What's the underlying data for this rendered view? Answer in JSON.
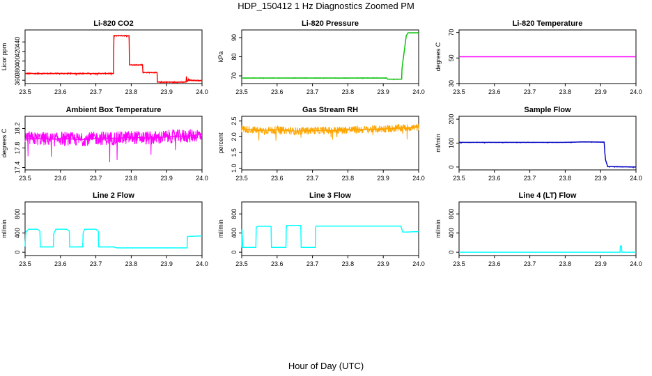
{
  "figure": {
    "title": "HDP_150412  1 Hz Diagnostics Zoomed PM",
    "xlabel": "Hour of Day (UTC)"
  },
  "chart_data": [
    {
      "type": "line",
      "title": "Li-820 CO2",
      "ylabel": "Licor ppm",
      "color": "#ff0000",
      "xlim": [
        23.5,
        24.0
      ],
      "xticks": [
        "23.5",
        "23.6",
        "23.7",
        "23.8",
        "23.9",
        "24.0"
      ],
      "ylim": [
        353,
        465
      ],
      "yticks": [
        "360",
        "380",
        "400",
        "420",
        "440"
      ],
      "noise": 1.2,
      "series": [
        {
          "x": [
            23.5,
            23.75,
            23.751,
            23.794,
            23.795,
            23.832,
            23.833,
            23.873,
            23.874,
            23.955,
            23.956,
            23.958,
            23.96,
            23.962,
            23.963,
            24.0
          ],
          "y": [
            374,
            374,
            453,
            453,
            392,
            392,
            376,
            376,
            356,
            356,
            368,
            358,
            358,
            362,
            360,
            359
          ]
        }
      ]
    },
    {
      "type": "line",
      "title": "Li-820 Pressure",
      "ylabel": "kPa",
      "color": "#00c000",
      "xlim": [
        23.5,
        24.0
      ],
      "xticks": [
        "23.5",
        "23.6",
        "23.7",
        "23.8",
        "23.9",
        "24.0"
      ],
      "ylim": [
        66,
        94
      ],
      "yticks": [
        "70",
        "80",
        "90"
      ],
      "noise": 0.12,
      "series": [
        {
          "x": [
            23.5,
            23.91,
            23.912,
            23.952,
            23.953,
            23.965,
            23.97,
            24.0
          ],
          "y": [
            68.9,
            68.9,
            68.3,
            68.3,
            74,
            91,
            92.5,
            92.5
          ]
        }
      ]
    },
    {
      "type": "line",
      "title": "Li-820 Temperature",
      "ylabel": "degrees C",
      "color": "#ff00ff",
      "xlim": [
        23.5,
        24.0
      ],
      "xticks": [
        "23.5",
        "23.6",
        "23.7",
        "23.8",
        "23.9",
        "24.0"
      ],
      "ylim": [
        30,
        72
      ],
      "yticks": [
        "30",
        "50",
        "70"
      ],
      "noise": 0,
      "series": [
        {
          "x": [
            23.5,
            24.0
          ],
          "y": [
            51,
            51
          ]
        }
      ]
    },
    {
      "type": "line",
      "title": "Ambient Box Temperature",
      "ylabel": "degrees C",
      "color": "#ff00ff",
      "xlim": [
        23.5,
        24.0
      ],
      "xticks": [
        "23.5",
        "23.6",
        "23.7",
        "23.8",
        "23.9",
        "24.0"
      ],
      "ylim": [
        17.35,
        18.45
      ],
      "yticks": [
        "17.4",
        "17.8",
        "18.2"
      ],
      "noise": 0.14,
      "series": [
        {
          "x": [
            23.5,
            23.59,
            23.6,
            23.66,
            23.7,
            23.76,
            23.8,
            23.86,
            23.9,
            23.97,
            24.0
          ],
          "y": [
            18.0,
            17.98,
            18.0,
            17.97,
            18.0,
            18.0,
            18.02,
            18.0,
            18.03,
            18.05,
            18.08
          ]
        }
      ]
    },
    {
      "type": "line",
      "title": "Gas Stream RH",
      "ylabel": "percent",
      "color": "#ffa500",
      "xlim": [
        23.5,
        24.0
      ],
      "xticks": [
        "23.5",
        "23.6",
        "23.7",
        "23.8",
        "23.9",
        "24.0"
      ],
      "ylim": [
        0.95,
        2.65
      ],
      "yticks": [
        "1.0",
        "1.5",
        "2.0",
        "2.5"
      ],
      "noise": 0.12,
      "series": [
        {
          "x": [
            23.5,
            23.55,
            23.6,
            23.65,
            23.7,
            23.75,
            23.8,
            23.85,
            23.9,
            23.95,
            24.0
          ],
          "y": [
            2.25,
            2.2,
            2.22,
            2.18,
            2.2,
            2.2,
            2.22,
            2.23,
            2.25,
            2.28,
            2.3
          ]
        }
      ]
    },
    {
      "type": "line",
      "title": "Sample Flow",
      "ylabel": "ml/min",
      "color": "#0000c0",
      "xlim": [
        23.5,
        24.0
      ],
      "xticks": [
        "23.5",
        "23.6",
        "23.7",
        "23.8",
        "23.9",
        "24.0"
      ],
      "ylim": [
        -12,
        212
      ],
      "yticks": [
        "0",
        "100",
        "200"
      ],
      "noise": 1.0,
      "series": [
        {
          "x": [
            23.5,
            23.8,
            23.85,
            23.91,
            23.912,
            23.914,
            23.92,
            24.0
          ],
          "y": [
            103,
            103,
            105,
            104,
            60,
            30,
            2,
            0
          ]
        }
      ]
    },
    {
      "type": "line",
      "title": "Line 2 Flow",
      "ylabel": "ml/min",
      "color": "#00ffff",
      "xlim": [
        23.5,
        24.0
      ],
      "xticks": [
        "23.5",
        "23.6",
        "23.7",
        "23.8",
        "23.9",
        "24.0"
      ],
      "ylim": [
        -70,
        1050
      ],
      "yticks": [
        "0",
        "400",
        "800"
      ],
      "noise": 0,
      "series": [
        {
          "x": [
            23.5,
            23.502,
            23.51,
            23.535,
            23.542,
            23.543,
            23.58,
            23.581,
            23.587,
            23.617,
            23.625,
            23.626,
            23.663,
            23.664,
            23.668,
            23.7,
            23.707,
            23.708,
            23.75,
            23.76,
            23.95,
            23.958,
            23.959,
            24.0
          ],
          "y": [
            120,
            420,
            480,
            480,
            440,
            110,
            110,
            390,
            480,
            480,
            440,
            110,
            110,
            390,
            480,
            480,
            440,
            110,
            110,
            90,
            90,
            90,
            330,
            340
          ]
        }
      ]
    },
    {
      "type": "line",
      "title": "Line 3 Flow",
      "ylabel": "ml/min",
      "color": "#00ffff",
      "xlim": [
        23.5,
        24.0
      ],
      "xticks": [
        "23.5",
        "23.6",
        "23.7",
        "23.8",
        "23.9",
        "24.0"
      ],
      "ylim": [
        -70,
        1050
      ],
      "yticks": [
        "0",
        "400",
        "800"
      ],
      "noise": 0,
      "series": [
        {
          "x": [
            23.5,
            23.501,
            23.503,
            23.54,
            23.541,
            23.545,
            23.583,
            23.584,
            23.625,
            23.626,
            23.627,
            23.667,
            23.668,
            23.708,
            23.709,
            23.71,
            23.95,
            23.955,
            23.96,
            24.0
          ],
          "y": [
            100,
            480,
            100,
            100,
            520,
            540,
            540,
            100,
            100,
            520,
            560,
            560,
            100,
            100,
            520,
            545,
            545,
            420,
            420,
            430
          ]
        }
      ]
    },
    {
      "type": "line",
      "title": "Line 4 (LT) Flow",
      "ylabel": "ml/min",
      "color": "#00ffff",
      "xlim": [
        23.5,
        24.0
      ],
      "xticks": [
        "23.5",
        "23.6",
        "23.7",
        "23.8",
        "23.9",
        "24.0"
      ],
      "ylim": [
        -70,
        1050
      ],
      "yticks": [
        "0",
        "400",
        "800"
      ],
      "noise": 0,
      "series": [
        {
          "x": [
            23.5,
            23.955,
            23.956,
            23.959,
            23.96,
            24.0
          ],
          "y": [
            0,
            0,
            130,
            130,
            0,
            0
          ]
        }
      ]
    }
  ]
}
